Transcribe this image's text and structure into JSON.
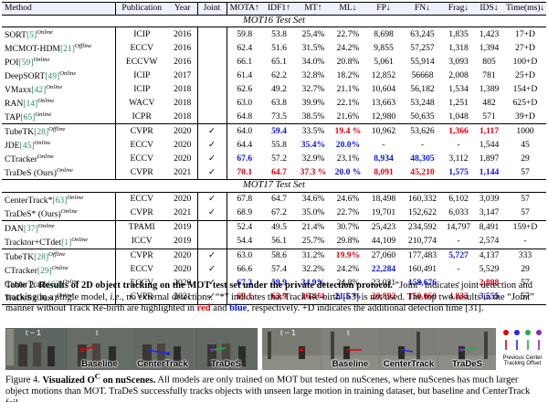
{
  "table": {
    "headers": {
      "method": "Method",
      "publication": "Publication",
      "year": "Year",
      "joint": "Joint",
      "mota": "MOTA↑",
      "idf1": "IDF1↑",
      "mt": "MT↑",
      "ml": "ML↓",
      "fp": "FP↓",
      "fn": "FN↓",
      "frag": "Frag↓",
      "ids": "IDS↓",
      "time": "Time(ms)↓"
    },
    "sections": [
      {
        "title": "MOT16 Test Set",
        "groups": [
          [
            {
              "name": "SORT",
              "cite": "[5]",
              "tag": "Online",
              "pub": "ICIP",
              "year": "2016",
              "joint": "",
              "cells": [
                [
                  "59.8"
                ],
                [
                  "53.8"
                ],
                [
                  "25.4%"
                ],
                [
                  "22.7%"
                ],
                [
                  "8,698"
                ],
                [
                  "63,245"
                ],
                [
                  "1,835"
                ],
                [
                  "1,423"
                ],
                [
                  "17+D"
                ]
              ]
            },
            {
              "name": "MCMOT-HDM",
              "cite": "[21]",
              "tag": "Offline",
              "pub": "ECCV",
              "year": "2016",
              "joint": "",
              "cells": [
                [
                  "62.4"
                ],
                [
                  "51.6"
                ],
                [
                  "31.5%"
                ],
                [
                  "24.2%"
                ],
                [
                  "9,855"
                ],
                [
                  "57,257"
                ],
                [
                  "1,318"
                ],
                [
                  "1,394"
                ],
                [
                  "27+D"
                ]
              ]
            },
            {
              "name": "POI",
              "cite": "[59]",
              "tag": "Online",
              "pub": "ECCVW",
              "year": "2016",
              "joint": "",
              "cells": [
                [
                  "66.1"
                ],
                [
                  "65.1"
                ],
                [
                  "34.0%"
                ],
                [
                  "20.8%"
                ],
                [
                  "5,061"
                ],
                [
                  "55,914"
                ],
                [
                  "3,093"
                ],
                [
                  "805"
                ],
                [
                  "100+D"
                ]
              ]
            },
            {
              "name": "DeepSORT",
              "cite": "[49]",
              "tag": "Online",
              "pub": "ICIP",
              "year": "2017",
              "joint": "",
              "cells": [
                [
                  "61.4"
                ],
                [
                  "62.2"
                ],
                [
                  "32.8%"
                ],
                [
                  "18.2%"
                ],
                [
                  "12,852"
                ],
                [
                  "56668"
                ],
                [
                  "2,008"
                ],
                [
                  "781"
                ],
                [
                  "25+D"
                ]
              ]
            },
            {
              "name": "VMaxx",
              "cite": "[42]",
              "tag": "Online",
              "pub": "ICIP",
              "year": "2018",
              "joint": "",
              "cells": [
                [
                  "62.6"
                ],
                [
                  "49.2"
                ],
                [
                  "32.7%"
                ],
                [
                  "21.1%"
                ],
                [
                  "10,604"
                ],
                [
                  "56,182"
                ],
                [
                  "1,534"
                ],
                [
                  "1,389"
                ],
                [
                  "154+D"
                ]
              ]
            },
            {
              "name": "RAN",
              "cite": "[14]",
              "tag": "Online",
              "pub": "WACV",
              "year": "2018",
              "joint": "",
              "cells": [
                [
                  "63.0"
                ],
                [
                  "63.8"
                ],
                [
                  "39.9%"
                ],
                [
                  "22.1%"
                ],
                [
                  "13,663"
                ],
                [
                  "53,248"
                ],
                [
                  "1,251"
                ],
                [
                  "482"
                ],
                [
                  "625+D"
                ]
              ]
            },
            {
              "name": "TAP",
              "cite": "[65]",
              "tag": "Online",
              "pub": "ICPR",
              "year": "2018",
              "joint": "",
              "cells": [
                [
                  "64.8"
                ],
                [
                  "73.5"
                ],
                [
                  "38.5%"
                ],
                [
                  "21.6%"
                ],
                [
                  "12,980"
                ],
                [
                  "50,635"
                ],
                [
                  "1,048"
                ],
                [
                  "571"
                ],
                [
                  "39+D"
                ]
              ]
            }
          ],
          [
            {
              "name": "TubeTK",
              "cite": "[28]",
              "tag": "Offline",
              "pub": "CVPR",
              "year": "2020",
              "joint": "✓",
              "cells": [
                [
                  "64.0"
                ],
                [
                  "59.4",
                  "blue"
                ],
                [
                  "33.5%"
                ],
                [
                  "19.4 %",
                  "red"
                ],
                [
                  "10,962"
                ],
                [
                  "53,626"
                ],
                [
                  "1,366",
                  "red"
                ],
                [
                  "1,117",
                  "red"
                ],
                [
                  "1000"
                ]
              ]
            },
            {
              "name": "JDE",
              "cite": "[45]",
              "tag": "Online",
              "pub": "ECCV",
              "year": "2020",
              "joint": "✓",
              "cells": [
                [
                  "64.4"
                ],
                [
                  "55.8"
                ],
                [
                  "35.4%",
                  "blue"
                ],
                [
                  "20.0%",
                  "blue"
                ],
                [
                  "-"
                ],
                [
                  "-"
                ],
                [
                  "-"
                ],
                [
                  "1,544"
                ],
                [
                  "45"
                ]
              ]
            },
            {
              "name": "CTracker",
              "cite": "",
              "tag": "Online",
              "pub": "ECCV",
              "year": "2020",
              "joint": "✓",
              "cells": [
                [
                  "67.6",
                  "blue"
                ],
                [
                  "57.2"
                ],
                [
                  "32.9%"
                ],
                [
                  "23.1%"
                ],
                [
                  "8,934",
                  "blue"
                ],
                [
                  "48,305",
                  "blue"
                ],
                [
                  "3,112"
                ],
                [
                  "1,897"
                ],
                [
                  "29"
                ]
              ]
            },
            {
              "name": "TraDeS (Ours)",
              "cite": "",
              "tag": "Online",
              "pub": "CVPR",
              "year": "2021",
              "joint": "✓",
              "cells": [
                [
                  "70.1",
                  "red"
                ],
                [
                  "64.7",
                  "red"
                ],
                [
                  "37.3 %",
                  "red"
                ],
                [
                  "20.0 %",
                  "blue"
                ],
                [
                  "8,091",
                  "red"
                ],
                [
                  "45,210",
                  "red"
                ],
                [
                  "1,575",
                  "blue"
                ],
                [
                  "1,144",
                  "blue"
                ],
                [
                  "57"
                ]
              ]
            }
          ]
        ]
      },
      {
        "title": "MOT17 Test Set",
        "groups": [
          [
            {
              "name": "CenterTrack*",
              "cite": "[63]",
              "tag": "Online",
              "pub": "ECCV",
              "year": "2020",
              "joint": "✓",
              "cells": [
                [
                  "67.8"
                ],
                [
                  "64.7"
                ],
                [
                  "34.6%"
                ],
                [
                  "24.6%"
                ],
                [
                  "18,498"
                ],
                [
                  "160,332"
                ],
                [
                  "6,102"
                ],
                [
                  "3,039"
                ],
                [
                  "57"
                ]
              ]
            },
            {
              "name": "TraDeS* (Ours)",
              "cite": "",
              "tag": "Online",
              "pub": "CVPR",
              "year": "2021",
              "joint": "✓",
              "cells": [
                [
                  "68.9"
                ],
                [
                  "67.2"
                ],
                [
                  "35.0%"
                ],
                [
                  "22.7%"
                ],
                [
                  "19,701"
                ],
                [
                  "152,622"
                ],
                [
                  "6,033"
                ],
                [
                  "3,147"
                ],
                [
                  "57"
                ]
              ]
            }
          ],
          [
            {
              "name": "DAN",
              "cite": "[37]",
              "tag": "Online",
              "pub": "TPAMI",
              "year": "2019",
              "joint": "",
              "cells": [
                [
                  "52.4"
                ],
                [
                  "49.5"
                ],
                [
                  "21.4%"
                ],
                [
                  "30.7%"
                ],
                [
                  "25,423"
                ],
                [
                  "234,592"
                ],
                [
                  "14,797"
                ],
                [
                  "8,491"
                ],
                [
                  "159+D"
                ]
              ]
            },
            {
              "name": "Tracktor+CTdet",
              "cite": "[1]",
              "tag": "Online",
              "pub": "ICCV",
              "year": "2019",
              "joint": "",
              "cells": [
                [
                  "54.4"
                ],
                [
                  "56.1"
                ],
                [
                  "25.7%"
                ],
                [
                  "29.8%"
                ],
                [
                  "44,109"
                ],
                [
                  "210,774"
                ],
                [
                  "-"
                ],
                [
                  "2,574"
                ],
                [
                  "-"
                ]
              ]
            }
          ],
          [
            {
              "name": "TubeTK",
              "cite": "[28]",
              "tag": "Offline",
              "pub": "CVPR",
              "year": "2020",
              "joint": "✓",
              "cells": [
                [
                  "63.0"
                ],
                [
                  "58.6"
                ],
                [
                  "31.2%"
                ],
                [
                  "19.9%",
                  "red"
                ],
                [
                  "27,060"
                ],
                [
                  "177,483"
                ],
                [
                  "5,727",
                  "blue"
                ],
                [
                  "4,137"
                ],
                [
                  "333"
                ]
              ]
            },
            {
              "name": "CTracker",
              "cite": "[29]",
              "tag": "Online",
              "pub": "ECCV",
              "year": "2020",
              "joint": "✓",
              "cells": [
                [
                  "66.6"
                ],
                [
                  "57.4"
                ],
                [
                  "32.2%"
                ],
                [
                  "24.2%"
                ],
                [
                  "22,284",
                  "blue"
                ],
                [
                  "160,491"
                ],
                [
                  "-"
                ],
                [
                  "5,529"
                ],
                [
                  "29"
                ]
              ]
            },
            {
              "name": "CenterTrack",
              "cite": "[63]",
              "tag": "Online",
              "pub": "ECCV",
              "year": "2020",
              "joint": "✓",
              "cells": [
                [
                  "67.3",
                  "blue"
                ],
                [
                  "59.9",
                  "blue"
                ],
                [
                  "34.9%",
                  "blue"
                ],
                [
                  "24.8%"
                ],
                [
                  "23,031"
                ],
                [
                  "158,676",
                  "blue"
                ],
                [
                  "-"
                ],
                [
                  "2,898",
                  "red"
                ],
                [
                  "57"
                ]
              ]
            },
            {
              "name": "TraDeS (Ours)",
              "cite": "",
              "tag": "Online",
              "pub": "CVPR",
              "year": "2021",
              "joint": "✓",
              "cells": [
                [
                  "69.1",
                  "red"
                ],
                [
                  "63.9",
                  "red"
                ],
                [
                  "36.4%",
                  "red"
                ],
                [
                  "21.5 %",
                  "blue"
                ],
                [
                  "20,892",
                  "red"
                ],
                [
                  "150,060",
                  "red"
                ],
                [
                  "4,833",
                  "red"
                ],
                [
                  "3,555",
                  "blue"
                ],
                [
                  "57"
                ]
              ]
            }
          ]
        ]
      }
    ]
  },
  "table_caption": {
    "label": "Table 2.",
    "bold": "Results of 2D object tracking on the MOT test set under the private detection protocol.",
    "line1_rest": " “Joint” indicates joint detection and tracking in a single model, ",
    "ie": "i.e.",
    "line2": ", no external detections.  “*” indicates that Track Re-birth [63] is not used. The top two results in the “Joint” manner without Track Re-birth are highlighted in ",
    "red": "red",
    "and": " and ",
    "blue": "blue",
    "line3": ", respectively. +D indicates the additional detection time [31]."
  },
  "figure": {
    "labels": {
      "t1": "t − 1",
      "t": "t",
      "baseline": "Baseline",
      "centertrack": "CenterTrack",
      "trades": "TraDeS"
    },
    "legend": {
      "prev": "Previous Center",
      "offset": "Tracking Offset"
    },
    "colors": {
      "red": "#e0000e",
      "blue": "#1e28e8",
      "green": "#1db14a",
      "purple": "#7a2fb8"
    }
  },
  "figure_caption": {
    "label": "Figure 4.",
    "bold": "Visualized O",
    "sup": "C",
    "bold2": " on nuScenes.",
    "text": " All models are only trained on MOT but tested on nuScenes, where nuScenes has much larger object motions than MOT. TraDeS successfully tracks objects with unseen large motion in training dataset, but baseline and CenterTrack fail."
  }
}
